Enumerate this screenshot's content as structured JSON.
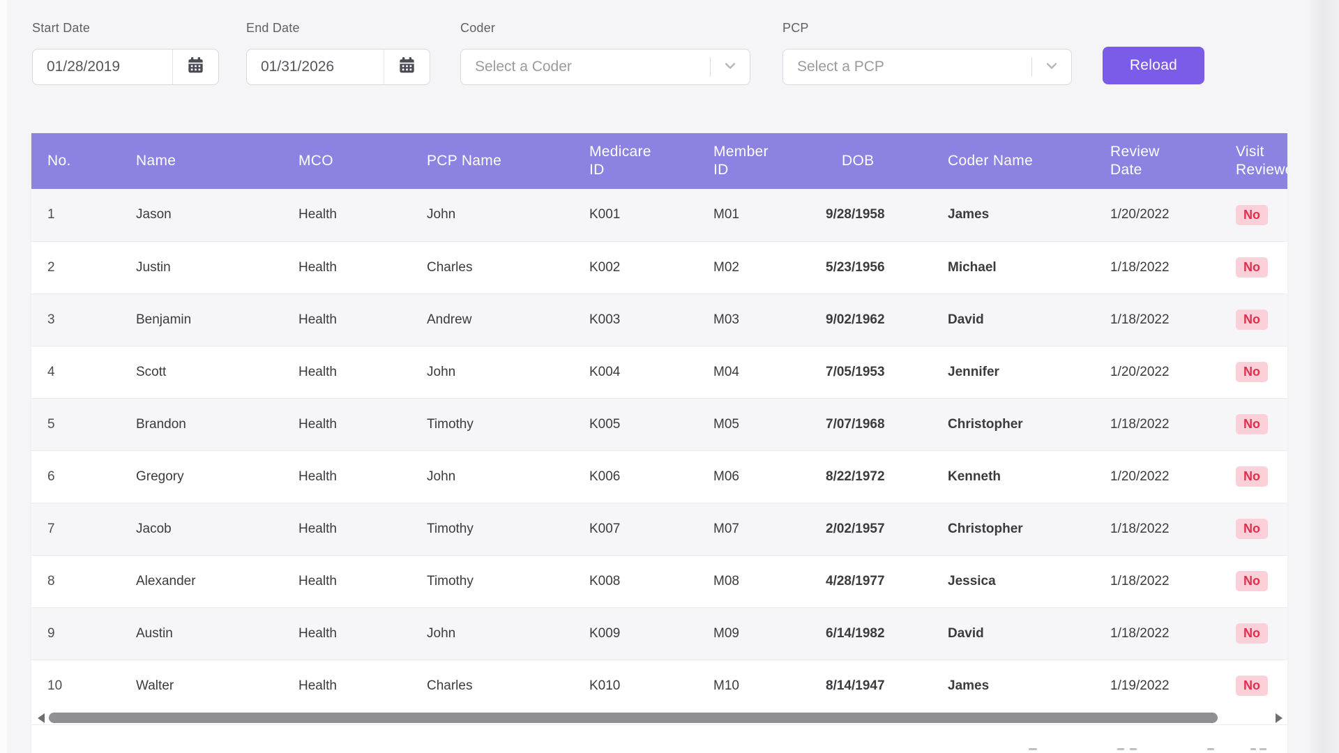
{
  "filters": {
    "start_date": {
      "label": "Start Date",
      "value": "01/28/2019"
    },
    "end_date": {
      "label": "End Date",
      "value": "01/31/2026"
    },
    "coder": {
      "label": "Coder",
      "placeholder": "Select a Coder"
    },
    "pcp": {
      "label": "PCP",
      "placeholder": "Select a PCP"
    },
    "reload_label": "Reload"
  },
  "table": {
    "columns": [
      "No.",
      "Name",
      "MCO",
      "PCP Name",
      "Medicare ID",
      "Member ID",
      "DOB",
      "Coder Name",
      "Review Date",
      "Visit Reviewed"
    ],
    "rows": [
      {
        "no": "1",
        "name": "Jason",
        "mco": "Health",
        "pcp_name": "John",
        "medicare_id": "K001",
        "member_id": "M01",
        "dob": "9/28/1958",
        "coder_name": "James",
        "review_date": "1/20/2022",
        "visit_reviewed": "No"
      },
      {
        "no": "2",
        "name": "Justin",
        "mco": "Health",
        "pcp_name": "Charles",
        "medicare_id": "K002",
        "member_id": "M02",
        "dob": "5/23/1956",
        "coder_name": "Michael",
        "review_date": "1/18/2022",
        "visit_reviewed": "No"
      },
      {
        "no": "3",
        "name": "Benjamin",
        "mco": "Health",
        "pcp_name": "Andrew",
        "medicare_id": "K003",
        "member_id": "M03",
        "dob": "9/02/1962",
        "coder_name": "David",
        "review_date": "1/18/2022",
        "visit_reviewed": "No"
      },
      {
        "no": "4",
        "name": "Scott",
        "mco": "Health",
        "pcp_name": "John",
        "medicare_id": "K004",
        "member_id": "M04",
        "dob": "7/05/1953",
        "coder_name": "Jennifer",
        "review_date": "1/20/2022",
        "visit_reviewed": "No"
      },
      {
        "no": "5",
        "name": "Brandon",
        "mco": "Health",
        "pcp_name": "Timothy",
        "medicare_id": "K005",
        "member_id": "M05",
        "dob": "7/07/1968",
        "coder_name": "Christopher",
        "review_date": "1/18/2022",
        "visit_reviewed": "No"
      },
      {
        "no": "6",
        "name": "Gregory",
        "mco": "Health",
        "pcp_name": "John",
        "medicare_id": "K006",
        "member_id": "M06",
        "dob": "8/22/1972",
        "coder_name": "Kenneth",
        "review_date": "1/20/2022",
        "visit_reviewed": "No"
      },
      {
        "no": "7",
        "name": "Jacob",
        "mco": "Health",
        "pcp_name": "Timothy",
        "medicare_id": "K007",
        "member_id": "M07",
        "dob": "2/02/1957",
        "coder_name": "Christopher",
        "review_date": "1/18/2022",
        "visit_reviewed": "No"
      },
      {
        "no": "8",
        "name": "Alexander",
        "mco": "Health",
        "pcp_name": "Timothy",
        "medicare_id": "K008",
        "member_id": "M08",
        "dob": "4/28/1977",
        "coder_name": "Jessica",
        "review_date": "1/18/2022",
        "visit_reviewed": "No"
      },
      {
        "no": "9",
        "name": "Austin",
        "mco": "Health",
        "pcp_name": "John",
        "medicare_id": "K009",
        "member_id": "M09",
        "dob": "6/14/1982",
        "coder_name": "David",
        "review_date": "1/18/2022",
        "visit_reviewed": "No"
      },
      {
        "no": "10",
        "name": "Walter",
        "mco": "Health",
        "pcp_name": "Charles",
        "medicare_id": "K010",
        "member_id": "M10",
        "dob": "8/14/1947",
        "coder_name": "James",
        "review_date": "1/19/2022",
        "visit_reviewed": "No"
      }
    ]
  },
  "colors": {
    "header_purple": "#8b82e1",
    "button_purple": "#7a5ce9",
    "badge_bg": "#fbd0d9",
    "badge_text": "#e22e4d",
    "page_bg": "#f5f4f6"
  },
  "icons": {
    "calendar": "calendar-icon",
    "chevron": "chevron-down-icon",
    "scroll_left": "scroll-left-arrow-icon",
    "scroll_right": "scroll-right-arrow-icon"
  }
}
